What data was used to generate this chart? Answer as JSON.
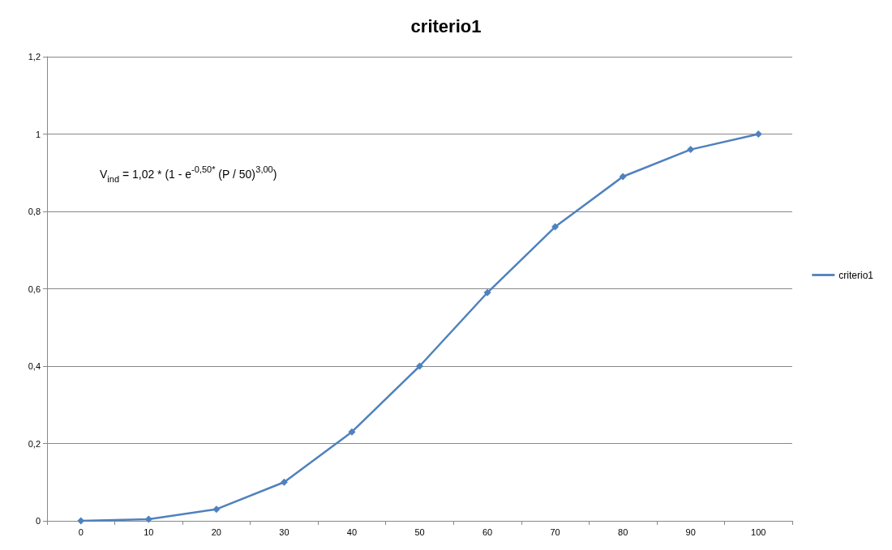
{
  "chart_data": {
    "type": "line",
    "title": "criterio1",
    "categories": [
      "0",
      "10",
      "20",
      "30",
      "40",
      "50",
      "60",
      "70",
      "80",
      "90",
      "100"
    ],
    "series": [
      {
        "name": "criterio1",
        "color": "#4f81bd",
        "values": [
          0,
          0.004,
          0.03,
          0.1,
          0.23,
          0.4,
          0.59,
          0.76,
          0.89,
          0.96,
          1.0
        ]
      }
    ],
    "ylim": [
      0,
      1.2
    ],
    "yticks": [
      0,
      {
        "value": 0.2,
        "label": "0,2"
      },
      {
        "value": 0.4,
        "label": "0,4"
      },
      {
        "value": 0.6,
        "label": "0,6"
      },
      {
        "value": 0.8,
        "label": "0,8"
      },
      1,
      {
        "value": 1.2,
        "label": "1,2"
      }
    ],
    "grid": "y",
    "legend": "right",
    "marker": "diamond",
    "line_style": "solid",
    "annotations": [
      "V$_{ind}$ = 1,02 * (1 - e$^{-0,50*}$ (P / 50)$^{3,00}$)"
    ]
  }
}
